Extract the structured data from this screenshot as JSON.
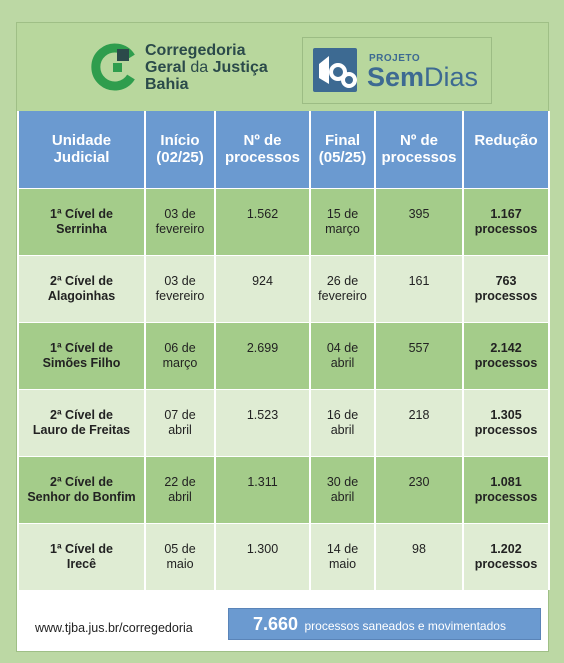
{
  "header": {
    "org_line1": "Corregedoria",
    "org_line2_a": "Geral",
    "org_line2_b": "da",
    "org_line2_c": "Justiça",
    "org_line3": "Bahia",
    "project_small": "PROJETO",
    "project_bold": "Sem",
    "project_light": "Dias"
  },
  "colors": {
    "background": "#bcd8a4",
    "header_green": "#b8d79d",
    "header_blue": "#6b9ad0",
    "row_dark": "#a4cc8a",
    "row_light": "#dfecd3",
    "logo_green": "#2f9d4d",
    "logo_dark": "#2b4a4a"
  },
  "table": {
    "columns": [
      {
        "line1": "Unidade",
        "line2": "Judicial"
      },
      {
        "line1": "Início",
        "line2": "(02/25)"
      },
      {
        "line1": "Nº de",
        "line2": "processos"
      },
      {
        "line1": "Final",
        "line2": "(05/25)"
      },
      {
        "line1": "Nº de",
        "line2": "processos"
      },
      {
        "line1": "Redução",
        "line2": ""
      }
    ],
    "rows": [
      {
        "unit1": "1ª Cível de",
        "unit2": "Serrinha",
        "start1": "03 de",
        "start2": "fevereiro",
        "start_count": "1.562",
        "end1": "15 de",
        "end2": "março",
        "end_count": "395",
        "red1": "1.167",
        "red2": "processos"
      },
      {
        "unit1": "2ª Cível de",
        "unit2": "Alagoinhas",
        "start1": "03 de",
        "start2": "fevereiro",
        "start_count": "924",
        "end1": "26 de",
        "end2": "fevereiro",
        "end_count": "161",
        "red1": "763",
        "red2": "processos"
      },
      {
        "unit1": "1ª Cível de",
        "unit2": "Simões Filho",
        "start1": "06 de",
        "start2": "março",
        "start_count": "2.699",
        "end1": "04 de",
        "end2": "abril",
        "end_count": "557",
        "red1": "2.142",
        "red2": "processos"
      },
      {
        "unit1": "2ª Cível de",
        "unit2": "Lauro de Freitas",
        "start1": "07 de",
        "start2": "abril",
        "start_count": "1.523",
        "end1": "16 de",
        "end2": "abril",
        "end_count": "218",
        "red1": "1.305",
        "red2": "processos"
      },
      {
        "unit1": "2ª Cível de",
        "unit2": "Senhor do Bonfim",
        "start1": "22 de",
        "start2": "abril",
        "start_count": "1.311",
        "end1": "30 de",
        "end2": "abril",
        "end_count": "230",
        "red1": "1.081",
        "red2": "processos"
      },
      {
        "unit1": "1ª Cível de",
        "unit2": "Irecê",
        "start1": "05 de",
        "start2": "maio",
        "start_count": "1.300",
        "end1": "14 de",
        "end2": "maio",
        "end_count": "98",
        "red1": "1.202",
        "red2": "processos"
      }
    ]
  },
  "footer": {
    "url": "www.tjba.jus.br/corregedoria",
    "total_number": "7.660",
    "total_label": "processos saneados e movimentados"
  }
}
